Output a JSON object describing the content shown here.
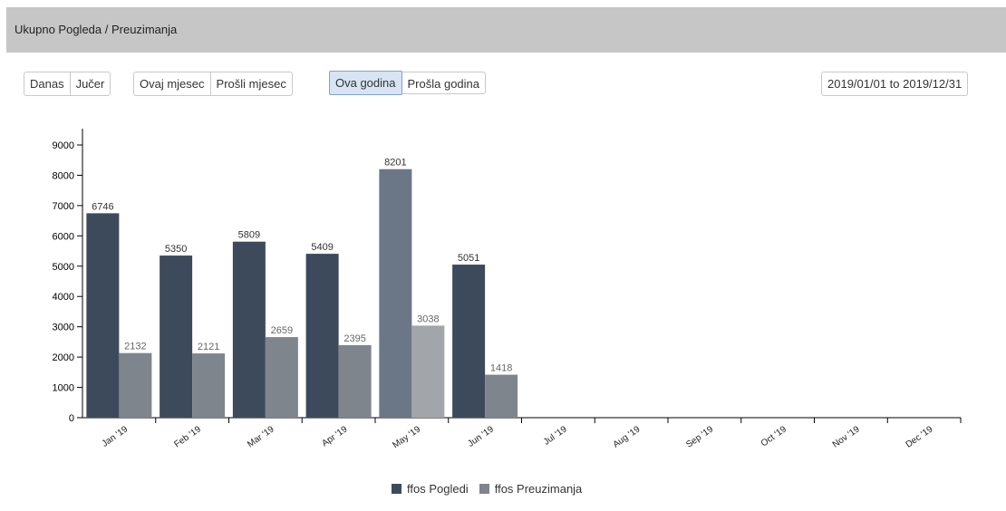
{
  "header": {
    "title": "Ukupno Pogleda / Preuzimanja"
  },
  "range_buttons": {
    "group1": [
      "Danas",
      "Jučer"
    ],
    "group2": [
      "Ovaj mjesec",
      "Prošli mjesec"
    ],
    "group3": [
      "Ova godina",
      "Prošla godina"
    ],
    "active": "Ova godina"
  },
  "date_range": "2019/01/01 to 2019/12/31",
  "colors": {
    "pogledi": "#3d4a5c",
    "preuzimanja": "#7f858c",
    "pogledi_highlight": "#6b7686",
    "preuzimanja_highlight": "#a2a6aa"
  },
  "chart_data": {
    "type": "bar",
    "categories": [
      "Jan '19",
      "Feb '19",
      "Mar '19",
      "Apr '19",
      "May '19",
      "Jun '19",
      "Jul '19",
      "Aug '19",
      "Sep '19",
      "Oct '19",
      "Nov '19",
      "Dec '19"
    ],
    "series": [
      {
        "name": "ffos Pogledi",
        "values": [
          6746,
          5350,
          5809,
          5409,
          8201,
          5051,
          null,
          null,
          null,
          null,
          null,
          null
        ]
      },
      {
        "name": "ffos Preuzimanja",
        "values": [
          2132,
          2121,
          2659,
          2395,
          3038,
          1418,
          null,
          null,
          null,
          null,
          null,
          null
        ]
      }
    ],
    "highlighted_category": "May '19",
    "ylim": [
      0,
      9000
    ],
    "yticks": [
      0,
      1000,
      2000,
      3000,
      4000,
      5000,
      6000,
      7000,
      8000,
      9000
    ],
    "legend_position": "bottom",
    "grid": false
  }
}
